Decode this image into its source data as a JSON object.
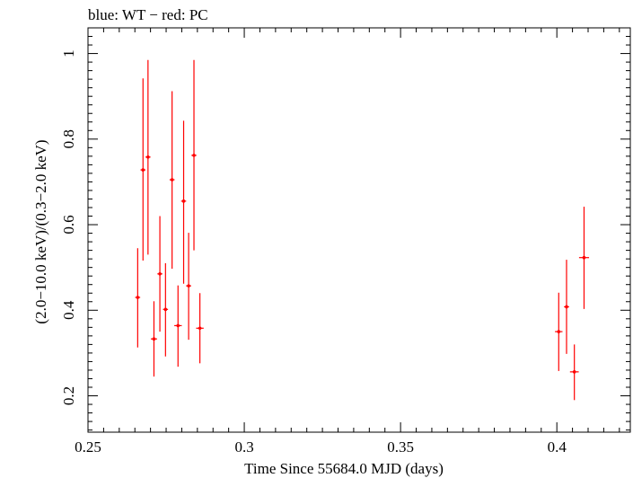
{
  "chart_data": {
    "type": "scatter",
    "title": "blue: WT − red: PC",
    "xlabel": "Time Since 55684.0 MJD (days)",
    "ylabel": "(2.0−10.0 keV)/(0.3−2.0 keV)",
    "xlim": [
      0.25,
      0.4235
    ],
    "ylim": [
      0.115,
      1.06
    ],
    "x_ticks": [
      0.25,
      0.3,
      0.35,
      0.4
    ],
    "x_tick_labels": [
      "0.25",
      "0.3",
      "0.35",
      "0.4"
    ],
    "y_ticks": [
      0.2,
      0.4,
      0.6,
      0.8,
      1.0
    ],
    "y_tick_labels": [
      "0.2",
      "0.4",
      "0.6",
      "0.8",
      "1"
    ],
    "grid": false,
    "colors": {
      "pc": "#ff0000",
      "axis": "#000000"
    },
    "series": [
      {
        "color": "#ff0000",
        "points": [
          {
            "x": 0.2659,
            "y": 0.43,
            "xerr": 0.0008,
            "ylo": 0.313,
            "yhi": 0.545
          },
          {
            "x": 0.2676,
            "y": 0.728,
            "xerr": 0.0008,
            "ylo": 0.516,
            "yhi": 0.942
          },
          {
            "x": 0.2692,
            "y": 0.758,
            "xerr": 0.0008,
            "ylo": 0.53,
            "yhi": 0.985
          },
          {
            "x": 0.2711,
            "y": 0.333,
            "xerr": 0.001,
            "ylo": 0.245,
            "yhi": 0.421
          },
          {
            "x": 0.273,
            "y": 0.485,
            "xerr": 0.0008,
            "ylo": 0.35,
            "yhi": 0.62
          },
          {
            "x": 0.2748,
            "y": 0.402,
            "xerr": 0.0008,
            "ylo": 0.292,
            "yhi": 0.51
          },
          {
            "x": 0.2769,
            "y": 0.705,
            "xerr": 0.0008,
            "ylo": 0.497,
            "yhi": 0.912
          },
          {
            "x": 0.2788,
            "y": 0.364,
            "xerr": 0.0012,
            "ylo": 0.268,
            "yhi": 0.458
          },
          {
            "x": 0.2806,
            "y": 0.655,
            "xerr": 0.0008,
            "ylo": 0.462,
            "yhi": 0.843
          },
          {
            "x": 0.2822,
            "y": 0.457,
            "xerr": 0.0008,
            "ylo": 0.331,
            "yhi": 0.581
          },
          {
            "x": 0.2839,
            "y": 0.762,
            "xerr": 0.0008,
            "ylo": 0.54,
            "yhi": 0.985
          },
          {
            "x": 0.2858,
            "y": 0.358,
            "xerr": 0.0012,
            "ylo": 0.276,
            "yhi": 0.44
          },
          {
            "x": 0.4006,
            "y": 0.35,
            "xerr": 0.0012,
            "ylo": 0.258,
            "yhi": 0.441
          },
          {
            "x": 0.4031,
            "y": 0.408,
            "xerr": 0.0008,
            "ylo": 0.298,
            "yhi": 0.518
          },
          {
            "x": 0.4056,
            "y": 0.256,
            "xerr": 0.0014,
            "ylo": 0.19,
            "yhi": 0.32
          },
          {
            "x": 0.4087,
            "y": 0.523,
            "xerr": 0.0016,
            "ylo": 0.403,
            "yhi": 0.642
          }
        ]
      }
    ]
  }
}
